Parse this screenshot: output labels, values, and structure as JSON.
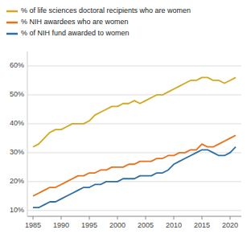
{
  "chart_data": {
    "type": "line",
    "x": [
      1985,
      1986,
      1987,
      1988,
      1989,
      1990,
      1991,
      1992,
      1993,
      1994,
      1995,
      1996,
      1997,
      1998,
      1999,
      2000,
      2001,
      2002,
      2003,
      2004,
      2005,
      2006,
      2007,
      2008,
      2009,
      2010,
      2011,
      2012,
      2013,
      2014,
      2015,
      2016,
      2017,
      2018,
      2019,
      2020,
      2021
    ],
    "series": [
      {
        "name": "% of life sciences doctoral recipients who are women",
        "color": "#D4A820",
        "values": [
          32,
          33,
          35,
          37,
          38,
          38,
          39,
          40,
          40,
          40,
          41,
          43,
          44,
          45,
          46,
          46,
          47,
          47,
          48,
          47,
          48,
          49,
          50,
          50,
          51,
          52,
          53,
          54,
          55,
          55,
          56,
          56,
          55,
          55,
          54,
          55,
          56
        ]
      },
      {
        "name": "% NIH awardees who are women",
        "color": "#E8711A",
        "values": [
          15,
          16,
          17,
          18,
          18,
          19,
          20,
          21,
          22,
          22,
          23,
          23,
          24,
          24,
          25,
          25,
          25,
          26,
          26,
          27,
          27,
          27,
          28,
          28,
          29,
          29,
          30,
          30,
          31,
          31,
          33,
          32,
          32,
          33,
          34,
          35,
          36
        ]
      },
      {
        "name": "% of NIH fund awarded to women",
        "color": "#2E6FA6",
        "values": [
          11,
          11,
          12,
          13,
          13,
          14,
          15,
          16,
          17,
          18,
          18,
          19,
          19,
          20,
          20,
          20,
          21,
          21,
          21,
          22,
          22,
          22,
          23,
          23,
          24,
          26,
          27,
          28,
          29,
          30,
          31,
          31,
          30,
          29,
          29,
          30,
          32
        ]
      }
    ],
    "xlim": [
      1984,
      2022
    ],
    "ylim": [
      8,
      65
    ],
    "xticks": [
      1985,
      1990,
      1995,
      2000,
      2005,
      2010,
      2015,
      2020
    ],
    "yticks": [
      {
        "value": 10,
        "label": "10%"
      },
      {
        "value": 20,
        "label": "20%"
      },
      {
        "value": 30,
        "label": "30%"
      },
      {
        "value": 40,
        "label": "40%"
      },
      {
        "value": 50,
        "label": "50%"
      },
      {
        "value": 60,
        "label": "60%"
      }
    ],
    "grid": true,
    "legend": "top"
  }
}
